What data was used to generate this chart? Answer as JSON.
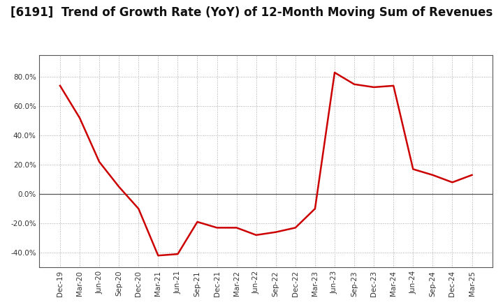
{
  "title": "[6191]  Trend of Growth Rate (YoY) of 12-Month Moving Sum of Revenues",
  "title_fontsize": 12,
  "background_color": "#ffffff",
  "grid_color": "#aaaaaa",
  "line_color": "#cc0000",
  "xlabels": [
    "Dec-19",
    "Mar-20",
    "Jun-20",
    "Sep-20",
    "Dec-20",
    "Mar-21",
    "Jun-21",
    "Sep-21",
    "Dec-21",
    "Mar-22",
    "Jun-22",
    "Sep-22",
    "Dec-22",
    "Mar-23",
    "Jun-23",
    "Sep-23",
    "Dec-23",
    "Mar-24",
    "Jun-24",
    "Sep-24",
    "Dec-24",
    "Mar-25"
  ],
  "yvalues": [
    74.0,
    52.0,
    22.0,
    5.0,
    -10.0,
    -42.0,
    -41.0,
    -19.0,
    -23.0,
    -23.0,
    -28.0,
    -26.0,
    -23.0,
    -10.0,
    83.0,
    75.0,
    73.0,
    74.0,
    17.0,
    13.0,
    8.0,
    13.0
  ],
  "ylim": [
    -50,
    95
  ],
  "yticks": [
    -40.0,
    -20.0,
    0.0,
    20.0,
    40.0,
    60.0,
    80.0
  ],
  "tick_label_color": "#333333",
  "spine_color": "#555555",
  "zero_line_color": "#555555"
}
